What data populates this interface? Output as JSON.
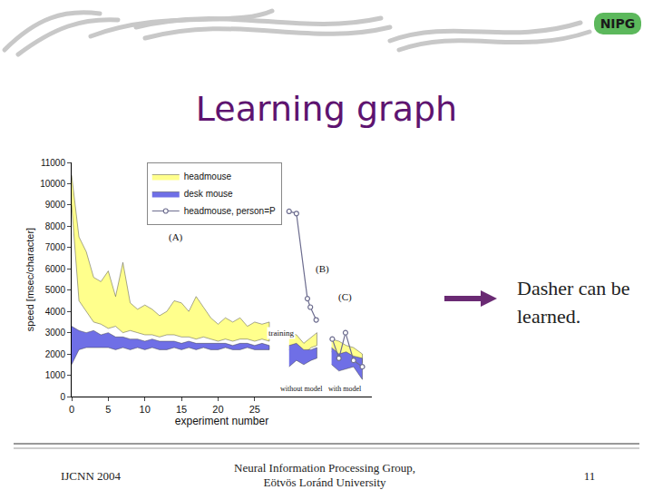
{
  "slide": {
    "title": "Learning graph",
    "logo": "NIPG",
    "note": "Dasher can be learned.",
    "footer": {
      "left": "IJCNN 2004",
      "center": "Neural Information Processing Group, Eötvös Loránd University",
      "right": "11"
    }
  },
  "chart_data": {
    "type": "band",
    "xlabel": "experiment number",
    "ylabel": "speed [msec/character]",
    "xlim": [
      0,
      41
    ],
    "xticks": [
      0,
      5,
      10,
      15,
      20,
      25
    ],
    "ylim": [
      0,
      11000
    ],
    "yticks": [
      0,
      1000,
      2000,
      3000,
      4000,
      5000,
      6000,
      7000,
      8000,
      9000,
      10000,
      11000
    ],
    "grid": false,
    "legend": "top",
    "annotations": [
      {
        "text": "(A)"
      },
      {
        "text": "(B)"
      },
      {
        "text": "(C)"
      },
      {
        "text": "training"
      },
      {
        "text": "without model"
      },
      {
        "text": "with model"
      }
    ],
    "series": [
      {
        "name": "headmouse",
        "type": "band",
        "color": "#ffff8c",
        "x": [
          0,
          1,
          2,
          3,
          4,
          5,
          6,
          7,
          8,
          9,
          10,
          11,
          12,
          13,
          14,
          15,
          16,
          17,
          18,
          19,
          20,
          21,
          22,
          23,
          24,
          25,
          26,
          27,
          null,
          29.7,
          30.7,
          31.7,
          32.7,
          33.5,
          null,
          35.5,
          36.5,
          37.5,
          38.5,
          39.7
        ],
        "high": [
          10400,
          7500,
          6800,
          5600,
          5400,
          5900,
          4700,
          6300,
          4400,
          4100,
          4300,
          4100,
          3800,
          4000,
          4500,
          4400,
          4000,
          4700,
          4200,
          3700,
          3400,
          3700,
          3500,
          3700,
          3300,
          3500,
          3400,
          3500,
          null,
          3000,
          2900,
          2500,
          2800,
          3000,
          null,
          2700,
          2600,
          2400,
          2300,
          2000
        ],
        "low": [
          9000,
          4500,
          4000,
          3500,
          3400,
          3200,
          3300,
          3000,
          3100,
          3000,
          2900,
          2900,
          2800,
          2900,
          2900,
          2800,
          2800,
          2700,
          2800,
          2700,
          2600,
          2700,
          2600,
          2700,
          2700,
          2600,
          2700,
          2600,
          null,
          2200,
          2300,
          2000,
          2300,
          2400,
          null,
          2100,
          1900,
          1900,
          1800,
          1600
        ]
      },
      {
        "name": "desk mouse",
        "type": "band",
        "color": "#6f6fe6",
        "x": [
          0,
          1,
          2,
          3,
          4,
          5,
          6,
          7,
          8,
          9,
          10,
          11,
          12,
          13,
          14,
          15,
          16,
          17,
          18,
          19,
          20,
          21,
          22,
          23,
          24,
          25,
          26,
          27,
          null,
          29.7,
          30.7,
          31.7,
          32.7,
          33.5,
          null,
          35.5,
          36.5,
          37.5,
          38.5,
          39.7
        ],
        "high": [
          3300,
          3100,
          3000,
          3100,
          2900,
          3000,
          2800,
          2800,
          2700,
          2700,
          2600,
          2700,
          2600,
          2600,
          2600,
          2500,
          2600,
          2500,
          2500,
          2500,
          2500,
          2500,
          2400,
          2500,
          2500,
          2400,
          2500,
          2400,
          null,
          2400,
          2500,
          2200,
          2200,
          2300,
          null,
          2300,
          2000,
          2100,
          1900,
          1800
        ],
        "low": [
          1500,
          2200,
          2300,
          2300,
          2300,
          2300,
          2200,
          2300,
          2200,
          2300,
          2200,
          2300,
          2200,
          2200,
          2300,
          2200,
          2300,
          2200,
          2300,
          2200,
          2200,
          2300,
          2200,
          2200,
          2300,
          2200,
          2200,
          2200,
          null,
          1400,
          1700,
          1500,
          1700,
          1800,
          null,
          1500,
          1200,
          1300,
          1400,
          800
        ]
      },
      {
        "name": "headmouse, person=P",
        "type": "line",
        "color": "#6d6d8f",
        "marker": "circle",
        "x": [
          29.7,
          30.7,
          32.2,
          32.6,
          33.4,
          null,
          35.6,
          36.5,
          37.4,
          38.5,
          39.7
        ],
        "values": [
          8700,
          8600,
          4600,
          4200,
          3600,
          null,
          2700,
          1800,
          3000,
          1700,
          1400
        ]
      }
    ]
  }
}
